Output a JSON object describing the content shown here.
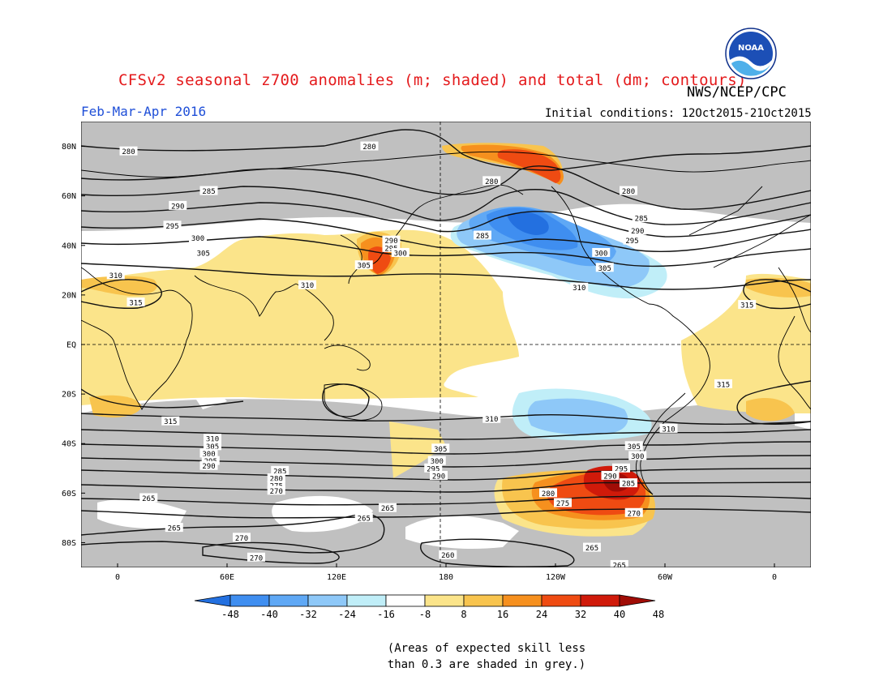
{
  "title": "CFSv2 seasonal z700 anomalies (m; shaded) and total (dm; contours)",
  "agency": "NWS/NCEP/CPC",
  "logo_text": "NOAA",
  "period": "Feb-Mar-Apr 2016",
  "initial_conditions": "Initial conditions: 12Oct2015-21Oct2015",
  "note_line1": "(Areas of expected skill less",
  "note_line2": "than 0.3 are shaded in grey.)",
  "lat_labels": [
    "80N",
    "60N",
    "40N",
    "20N",
    "EQ",
    "20S",
    "40S",
    "60S",
    "80S"
  ],
  "lon_labels": [
    "0",
    "60E",
    "120E",
    "180",
    "120W",
    "60W",
    "0"
  ],
  "colorbar": {
    "labels": [
      "-48",
      "-40",
      "-32",
      "-24",
      "-16",
      "-8",
      "8",
      "16",
      "24",
      "32",
      "40",
      "48"
    ],
    "colors": [
      "#2370e0",
      "#3f8ef0",
      "#5fa8f5",
      "#8ec8f8",
      "#c0eef8",
      "#ffffff",
      "#fbe48a",
      "#f8c44e",
      "#f6901e",
      "#ef4b12",
      "#d01a0a",
      "#a00c06"
    ]
  },
  "skill_mask_color": "#c0c0c0",
  "contour_labels": [
    {
      "text": "280",
      "lon": 138,
      "lat": 80
    },
    {
      "text": "280",
      "lon": 6,
      "lat": 78
    },
    {
      "text": "280",
      "lon": 205,
      "lat": 66
    },
    {
      "text": "280",
      "lon": 280,
      "lat": 62
    },
    {
      "text": "285",
      "lon": 50,
      "lat": 62
    },
    {
      "text": "285",
      "lon": 287,
      "lat": 51
    },
    {
      "text": "285",
      "lon": 200,
      "lat": 44
    },
    {
      "text": "290",
      "lon": 33,
      "lat": 56
    },
    {
      "text": "290",
      "lon": 150,
      "lat": 42
    },
    {
      "text": "290",
      "lon": 285,
      "lat": 46
    },
    {
      "text": "295",
      "lon": 30,
      "lat": 48
    },
    {
      "text": "295",
      "lon": 150,
      "lat": 39
    },
    {
      "text": "295",
      "lon": 282,
      "lat": 42
    },
    {
      "text": "300",
      "lon": 44,
      "lat": 43
    },
    {
      "text": "300",
      "lon": 155,
      "lat": 37
    },
    {
      "text": "300",
      "lon": 265,
      "lat": 37
    },
    {
      "text": "305",
      "lon": 47,
      "lat": 37
    },
    {
      "text": "305",
      "lon": 135,
      "lat": 32
    },
    {
      "text": "305",
      "lon": 267,
      "lat": 31
    },
    {
      "text": "310",
      "lon": -1,
      "lat": 28
    },
    {
      "text": "310",
      "lon": 104,
      "lat": 24
    },
    {
      "text": "310",
      "lon": 253,
      "lat": 23
    },
    {
      "text": "315",
      "lon": 10,
      "lat": 17
    },
    {
      "text": "315",
      "lon": 345,
      "lat": 16
    },
    {
      "text": "315",
      "lon": 332,
      "lat": -16
    },
    {
      "text": "315",
      "lon": 29,
      "lat": -31
    },
    {
      "text": "310",
      "lon": 205,
      "lat": -30
    },
    {
      "text": "310",
      "lon": 302,
      "lat": -34
    },
    {
      "text": "310",
      "lon": 52,
      "lat": -38
    },
    {
      "text": "305",
      "lon": 52,
      "lat": -41
    },
    {
      "text": "305",
      "lon": 177,
      "lat": -42
    },
    {
      "text": "305",
      "lon": 283,
      "lat": -41
    },
    {
      "text": "300",
      "lon": 50,
      "lat": -44
    },
    {
      "text": "300",
      "lon": 175,
      "lat": -47
    },
    {
      "text": "300",
      "lon": 285,
      "lat": -45
    },
    {
      "text": "295",
      "lon": 51,
      "lat": -47
    },
    {
      "text": "295",
      "lon": 173,
      "lat": -50
    },
    {
      "text": "295",
      "lon": 276,
      "lat": -50
    },
    {
      "text": "290",
      "lon": 50,
      "lat": -49
    },
    {
      "text": "290",
      "lon": 176,
      "lat": -53
    },
    {
      "text": "290",
      "lon": 270,
      "lat": -53
    },
    {
      "text": "285",
      "lon": 89,
      "lat": -51
    },
    {
      "text": "285",
      "lon": 280,
      "lat": -56
    },
    {
      "text": "280",
      "lon": 87,
      "lat": -54
    },
    {
      "text": "280",
      "lon": 236,
      "lat": -60
    },
    {
      "text": "275",
      "lon": 87,
      "lat": -57
    },
    {
      "text": "275",
      "lon": 244,
      "lat": -64
    },
    {
      "text": "270",
      "lon": 87,
      "lat": -59
    },
    {
      "text": "270",
      "lon": 283,
      "lat": -68
    },
    {
      "text": "270",
      "lon": 68,
      "lat": -78
    },
    {
      "text": "270",
      "lon": 76,
      "lat": -86
    },
    {
      "text": "265",
      "lon": 17,
      "lat": -62
    },
    {
      "text": "265",
      "lon": 148,
      "lat": -66
    },
    {
      "text": "265",
      "lon": 135,
      "lat": -70
    },
    {
      "text": "265",
      "lon": 31,
      "lat": -74
    },
    {
      "text": "265",
      "lon": 260,
      "lat": -82
    },
    {
      "text": "265",
      "lon": 275,
      "lat": -89
    },
    {
      "text": "260",
      "lon": 181,
      "lat": -85
    }
  ]
}
